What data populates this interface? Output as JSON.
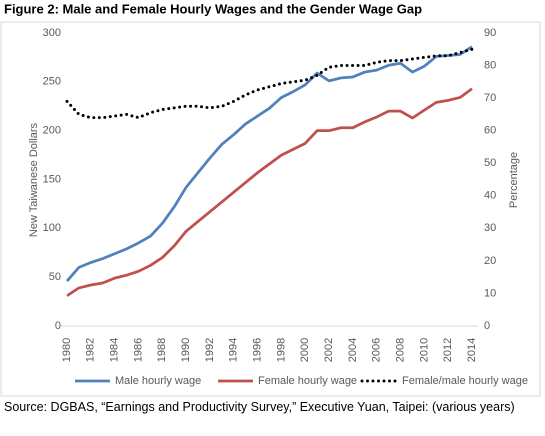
{
  "chart_data": {
    "type": "line",
    "title": "Figure 2: Male and Female Hourly Wages and the Gender Wage Gap",
    "y_label": "New Taiwanese Dollars",
    "y2_label": "Percentage",
    "source": "Source: DGBAS, “Earnings and Productivity Survey,” Executive Yuan, Taipei: (various years)",
    "x": [
      1980,
      1981,
      1982,
      1983,
      1984,
      1985,
      1986,
      1987,
      1988,
      1989,
      1990,
      1991,
      1992,
      1993,
      1994,
      1995,
      1996,
      1997,
      1998,
      1999,
      2000,
      2001,
      2002,
      2003,
      2004,
      2005,
      2006,
      2007,
      2008,
      2009,
      2010,
      2011,
      2012,
      2013,
      2014
    ],
    "xlim": [
      1980,
      2014
    ],
    "xticks": [
      1980,
      1982,
      1984,
      1986,
      1988,
      1990,
      1992,
      1994,
      1996,
      1998,
      2000,
      2002,
      2004,
      2006,
      2008,
      2010,
      2012,
      2014
    ],
    "ylim": [
      0,
      300
    ],
    "yticks": [
      0,
      50,
      100,
      150,
      200,
      250,
      300
    ],
    "y2lim": [
      0,
      90
    ],
    "y2ticks": [
      0,
      10,
      20,
      30,
      40,
      50,
      60,
      70,
      80,
      90
    ],
    "grid": false,
    "legend": "bottom",
    "series": [
      {
        "name": "Male hourly wage",
        "color": "#4f81bd",
        "line_style": "solid",
        "values": [
          46,
          60,
          65,
          69,
          74,
          79,
          85,
          92,
          105,
          122,
          142,
          157,
          172,
          186,
          196,
          207,
          215,
          223,
          234,
          240,
          247,
          259,
          251,
          254,
          255,
          260,
          262,
          267,
          269,
          260,
          266,
          276,
          277,
          278,
          286
        ]
      },
      {
        "name": "Female hourly wage",
        "color": "#c0504d",
        "line_style": "solid",
        "values": [
          31,
          39,
          42,
          44,
          49,
          52,
          56,
          62,
          70,
          82,
          97,
          107,
          117,
          127,
          137,
          147,
          157,
          166,
          175,
          181,
          187,
          200,
          200,
          203,
          203,
          209,
          214,
          220,
          220,
          213,
          221,
          229,
          231,
          234,
          243
        ]
      },
      {
        "name": "Female/male hourly wage",
        "color": "#000000",
        "line_style": "dotted",
        "axis": "y2",
        "values": [
          69,
          65,
          64,
          64,
          64.5,
          65,
          64,
          65.5,
          66.5,
          67,
          67.5,
          67.5,
          67,
          67.5,
          69,
          71,
          72.5,
          73.5,
          74.5,
          75,
          75.5,
          77,
          79.5,
          80,
          80,
          80,
          81,
          81.5,
          81.5,
          82,
          82.5,
          83,
          83,
          84,
          85
        ]
      }
    ]
  }
}
